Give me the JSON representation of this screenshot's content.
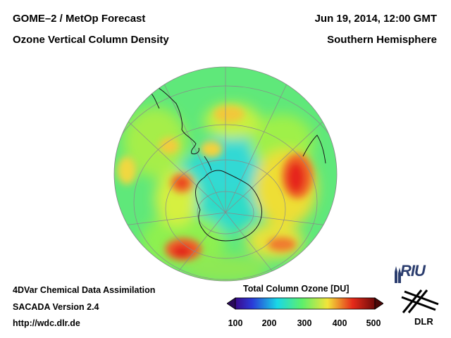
{
  "header": {
    "title_left_1": "GOME–2 / MetOp Forecast",
    "title_left_2": "Ozone Vertical Column Density",
    "title_right_1": "Jun 19, 2014, 12:00 GMT",
    "title_right_2": "Southern Hemisphere"
  },
  "footer": {
    "line1": "4DVar Chemical Data Assimilation",
    "line2": "SACADA Version 2.4",
    "line3": "http://wdc.dlr.de"
  },
  "colorbar": {
    "title": "Total Column Ozone [DU]",
    "ticks": [
      "100",
      "200",
      "300",
      "400",
      "500"
    ],
    "min": 100,
    "max": 500
  },
  "logos": {
    "riu": "RIU",
    "dlr": "DLR"
  },
  "colors": {
    "low": "#3a0a8c",
    "mid_low": "#19d8e6",
    "mid": "#5ef06a",
    "mid_high": "#f2e43a",
    "high": "#e62a1a",
    "riu_blue": "#2b3d6e"
  },
  "icons": [
    "riu-cathedral-icon",
    "dlr-logo-icon"
  ]
}
